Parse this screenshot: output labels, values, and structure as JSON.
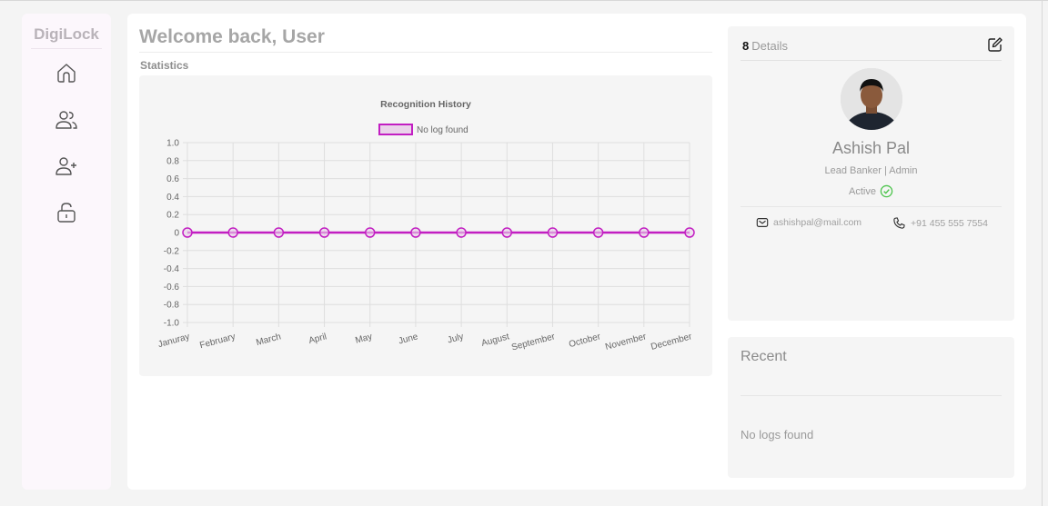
{
  "sidebar": {
    "brand": "DigiLock",
    "items": [
      {
        "name": "home",
        "icon": "home-icon"
      },
      {
        "name": "users",
        "icon": "users-icon"
      },
      {
        "name": "add-user",
        "icon": "user-plus-icon"
      },
      {
        "name": "unlock",
        "icon": "unlock-icon"
      }
    ]
  },
  "header": {
    "title": "Welcome back, User",
    "section": "Statistics"
  },
  "chart_data": {
    "type": "line",
    "title": "Recognition History",
    "categories": [
      "Januray",
      "February",
      "March",
      "April",
      "May",
      "June",
      "July",
      "August",
      "September",
      "October",
      "November",
      "December"
    ],
    "series": [
      {
        "name": "No log found",
        "values": [
          0,
          0,
          0,
          0,
          0,
          0,
          0,
          0,
          0,
          0,
          0,
          0
        ],
        "color": "#c21ec2"
      }
    ],
    "ylim": [
      -1.0,
      1.0
    ],
    "y_ticks": [
      "1.0",
      "0.8",
      "0.6",
      "0.4",
      "0.2",
      "0",
      "-0.2",
      "-0.4",
      "-0.6",
      "-0.8",
      "-1.0"
    ],
    "grid": true,
    "legend": "top"
  },
  "details": {
    "heading": "Details",
    "lock_glyph": "8",
    "name": "Ashish Pal",
    "role": "Lead Banker | Admin",
    "status": "Active",
    "email": "ashishpal@mail.com",
    "phone": "+91 455 555 7554"
  },
  "recent": {
    "title": "Recent",
    "empty": "No logs found"
  },
  "colors": {
    "accent": "#c21ec2",
    "status_active": "#4cc44c"
  }
}
